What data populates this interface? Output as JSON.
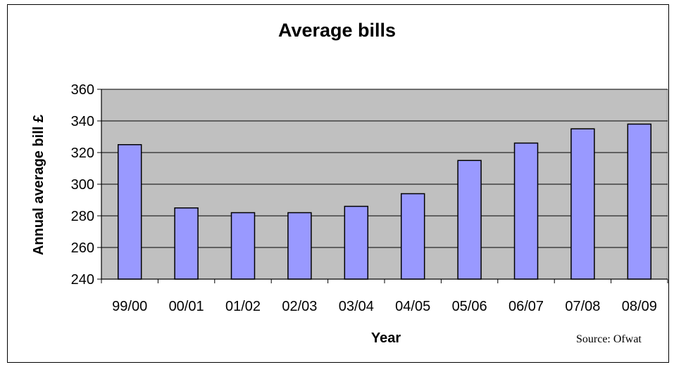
{
  "chart_data": {
    "type": "bar",
    "title": "Average bills",
    "xlabel": "Year",
    "ylabel": "Annual average bill £",
    "categories": [
      "99/00",
      "00/01",
      "01/02",
      "02/03",
      "03/04",
      "04/05",
      "05/06",
      "06/07",
      "07/08",
      "08/09"
    ],
    "values": [
      325,
      285,
      282,
      282,
      286,
      294,
      315,
      326,
      335,
      338
    ],
    "ylim": [
      240,
      360
    ],
    "yticks": [
      "240",
      "260",
      "280",
      "300",
      "320",
      "340",
      "360"
    ],
    "grid": true,
    "legend": "none",
    "colors": {
      "bar": "#9999ff",
      "plot_bg": "#c0c0c0",
      "bar_stroke": "#000000"
    }
  },
  "source_note": "Source: Ofwat"
}
